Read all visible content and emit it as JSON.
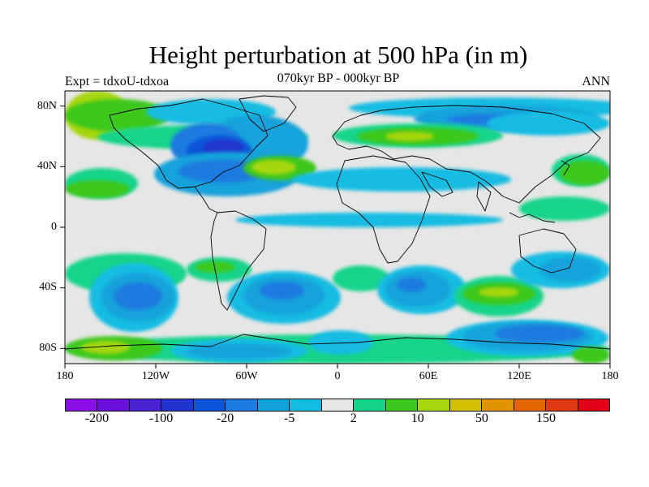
{
  "title": "Height perturbation at 500 hPa (in m)",
  "subtitle": "070kyr BP - 000kyr BP",
  "left_label": "Expt = tdxoU-tdxoa",
  "right_label": "ANN",
  "lat_labels": [
    "80N",
    "40N",
    "0",
    "40S",
    "80S"
  ],
  "lon_labels": [
    "180",
    "120W",
    "60W",
    "0",
    "60E",
    "120E",
    "180"
  ],
  "colorbar": {
    "colors": [
      "#8a0ee6",
      "#6a0fd8",
      "#4a22d2",
      "#2035cf",
      "#0a55d8",
      "#1c7ae0",
      "#12a2da",
      "#12bce2",
      "#e6e6e6",
      "#14d48a",
      "#3cc81e",
      "#a6d60c",
      "#d6be00",
      "#e29400",
      "#e26600",
      "#de3a12",
      "#e20016"
    ],
    "tick_labels": [
      "-200",
      "-100",
      "-20",
      "-5",
      "2",
      "10",
      "50",
      "150"
    ]
  },
  "palette": {
    "gray": "#e6e6e6",
    "cyan": "#12bce2",
    "lightblue": "#12a2da",
    "blue": "#1c7ae0",
    "darkblue": "#0a55d8",
    "deepblue": "#2035cf",
    "teal": "#14d48a",
    "green": "#3cc81e",
    "yellowgreen": "#a6d60c"
  }
}
